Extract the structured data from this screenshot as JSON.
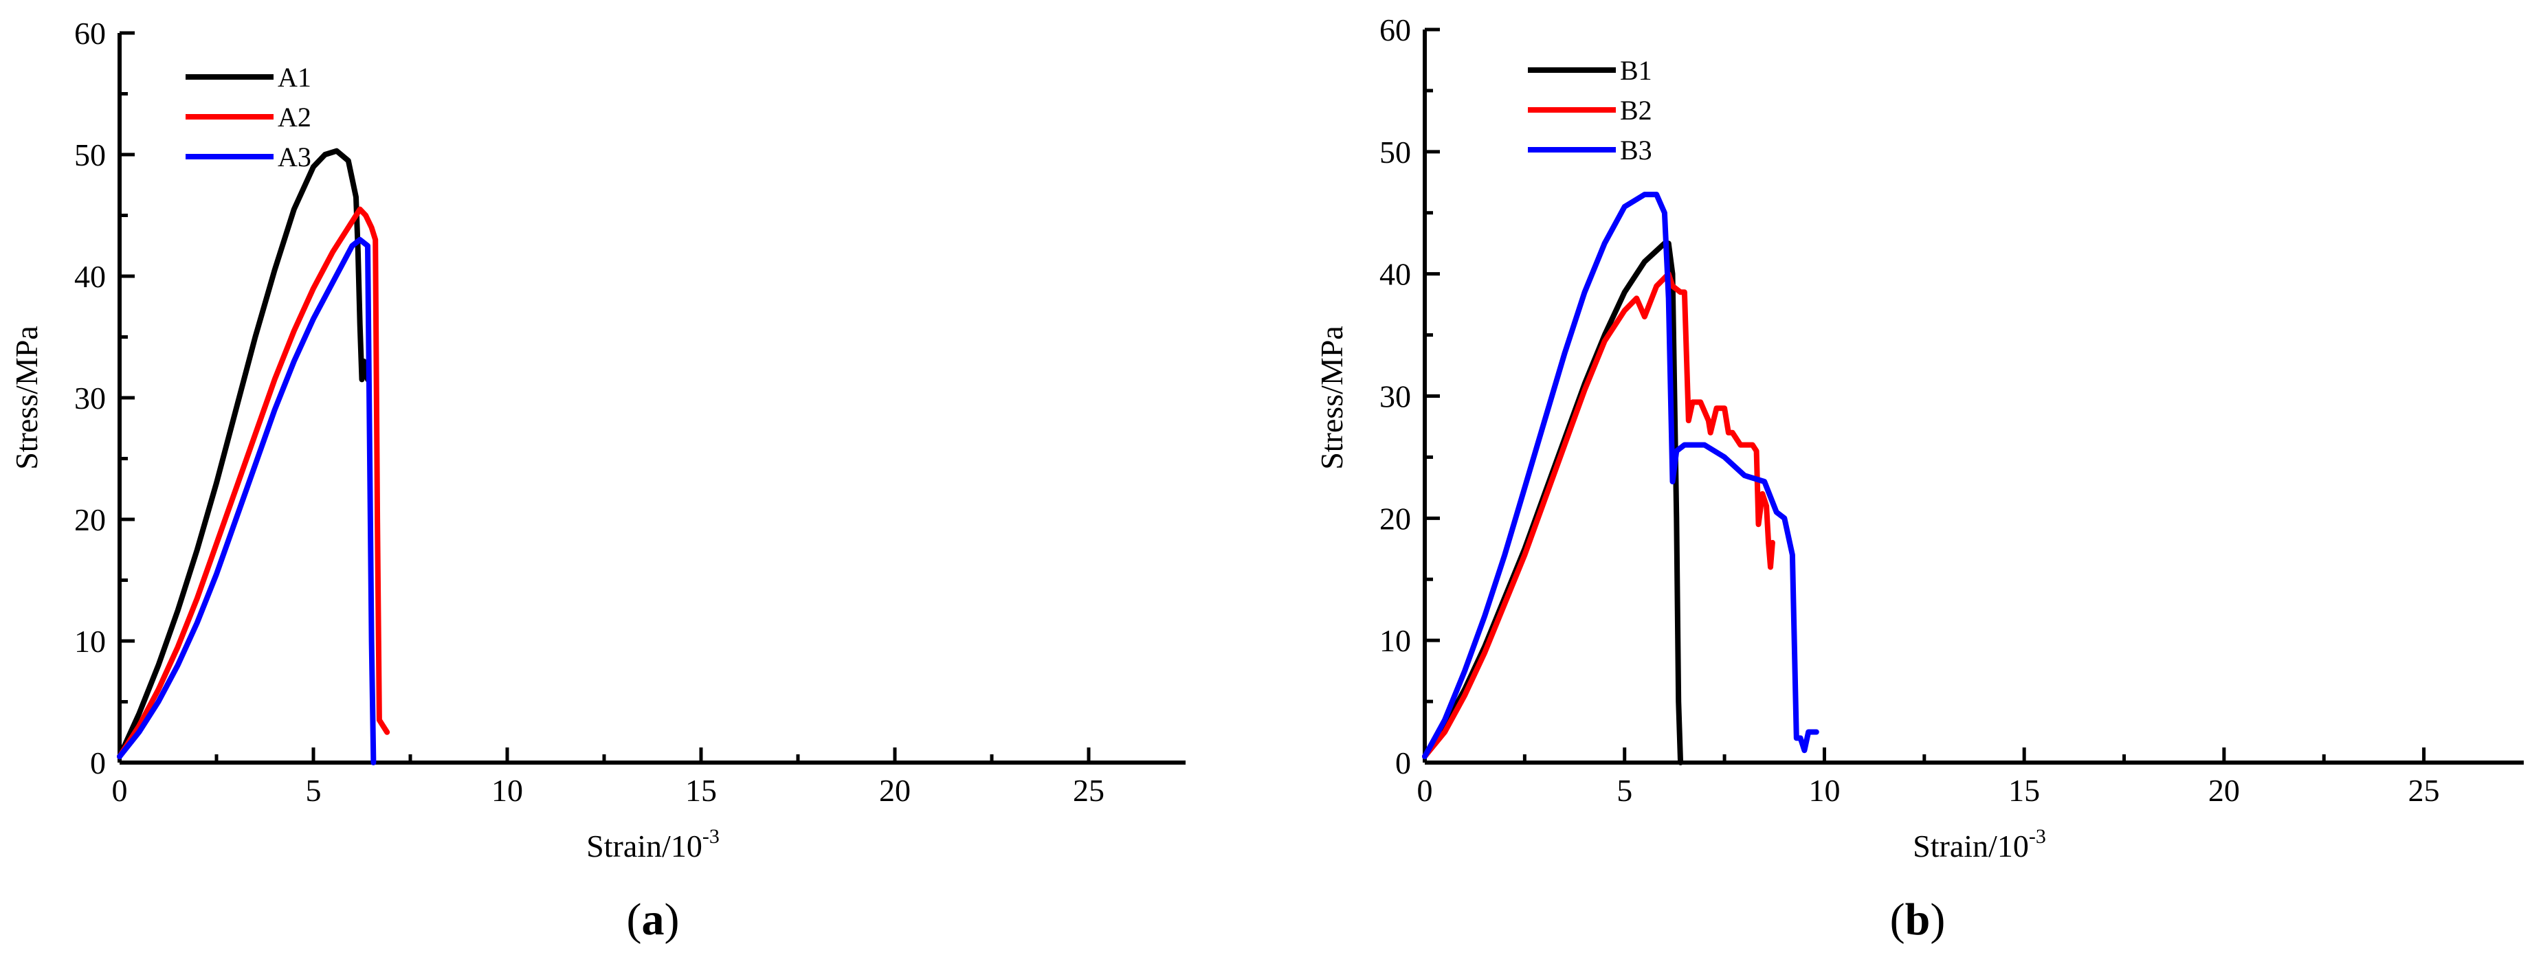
{
  "chart_data": [
    {
      "panel_label": "a",
      "type": "line",
      "xlabel": "Strain/10",
      "xlabel_exponent": "-3",
      "ylabel": "Stress/MPa",
      "xlim": [
        0,
        27.5
      ],
      "ylim": [
        0,
        60
      ],
      "xticks": [
        0,
        5,
        10,
        15,
        20,
        25
      ],
      "yticks": [
        0,
        10,
        20,
        30,
        40,
        50,
        60
      ],
      "legend_position": "top-left",
      "series": [
        {
          "name": "A1",
          "color": "#000000",
          "x": [
            0,
            0.5,
            1,
            1.5,
            2,
            2.5,
            3,
            3.5,
            4,
            4.5,
            5,
            5.3,
            5.6,
            5.9,
            6.1,
            6.15,
            6.2,
            6.25,
            6.3,
            6.35,
            6.4
          ],
          "y": [
            0.5,
            4,
            8,
            12.5,
            17.5,
            23,
            29,
            35,
            40.5,
            45.5,
            49,
            50,
            50.3,
            49.5,
            46.5,
            42,
            36,
            31.5,
            33,
            32,
            31.5
          ]
        },
        {
          "name": "A2",
          "color": "#ff0000",
          "x": [
            0,
            0.5,
            1,
            1.5,
            2,
            2.5,
            3,
            3.5,
            4,
            4.5,
            5,
            5.5,
            6,
            6.2,
            6.35,
            6.5,
            6.6,
            6.65,
            6.7,
            6.8,
            6.9
          ],
          "y": [
            0.5,
            3,
            6,
            9.5,
            13.5,
            18,
            22.5,
            27,
            31.5,
            35.5,
            39,
            42,
            44.5,
            45.5,
            45,
            44,
            43,
            20,
            3.5,
            3,
            2.5
          ]
        },
        {
          "name": "A3",
          "color": "#0000ff",
          "x": [
            0,
            0.5,
            1,
            1.5,
            2,
            2.5,
            3,
            3.5,
            4,
            4.5,
            5,
            5.5,
            6,
            6.2,
            6.4,
            6.5,
            6.55
          ],
          "y": [
            0.5,
            2.5,
            5,
            8,
            11.5,
            15.5,
            20,
            24.5,
            29,
            33,
            36.5,
            39.5,
            42.5,
            43,
            42.5,
            10,
            0
          ]
        }
      ]
    },
    {
      "panel_label": "b",
      "type": "line",
      "xlabel": "Strain/10",
      "xlabel_exponent": "-3",
      "ylabel": "Stress/MPa",
      "xlim": [
        0,
        27.5
      ],
      "ylim": [
        0,
        60
      ],
      "xticks": [
        0,
        5,
        10,
        15,
        20,
        25
      ],
      "yticks": [
        0,
        10,
        20,
        30,
        40,
        50,
        60
      ],
      "legend_position": "top-left",
      "series": [
        {
          "name": "B1",
          "color": "#000000",
          "x": [
            0,
            0.5,
            1,
            1.5,
            2,
            2.5,
            3,
            3.5,
            4,
            4.5,
            5,
            5.5,
            6,
            6.1,
            6.2,
            6.3,
            6.35,
            6.4
          ],
          "y": [
            0.5,
            3,
            6,
            9.5,
            13.5,
            17.5,
            22,
            26.5,
            31,
            35,
            38.5,
            41,
            42.5,
            42.5,
            40,
            20,
            5,
            0
          ]
        },
        {
          "name": "B2",
          "color": "#ff0000",
          "x": [
            0,
            0.5,
            1,
            1.5,
            2,
            2.5,
            3,
            3.5,
            4,
            4.5,
            5,
            5.3,
            5.5,
            5.8,
            6.1,
            6.2,
            6.4,
            6.5,
            6.6,
            6.7,
            6.9,
            7.1,
            7.15,
            7.3,
            7.5,
            7.6,
            7.7,
            7.9,
            8.0,
            8.2,
            8.3,
            8.35,
            8.45,
            8.55,
            8.6,
            8.65,
            8.7
          ],
          "y": [
            0.5,
            2.5,
            5.5,
            9,
            13,
            17,
            21.5,
            26,
            30.5,
            34.5,
            37,
            38,
            36.5,
            39,
            40,
            39,
            38.5,
            38.5,
            28,
            29.5,
            29.5,
            28,
            27,
            29,
            29,
            27,
            27,
            26,
            26,
            26,
            25.5,
            19.5,
            22,
            21,
            18,
            16,
            18
          ]
        },
        {
          "name": "B3",
          "color": "#0000ff",
          "x": [
            0,
            0.5,
            1,
            1.5,
            2,
            2.5,
            3,
            3.5,
            4,
            4.5,
            5,
            5.5,
            5.8,
            6.0,
            6.1,
            6.2,
            6.3,
            6.5,
            7.0,
            7.5,
            8.0,
            8.5,
            8.8,
            9.0,
            9.2,
            9.3,
            9.4,
            9.5,
            9.6,
            9.8
          ],
          "y": [
            0.5,
            3.5,
            7.5,
            12,
            17,
            22.5,
            28,
            33.5,
            38.5,
            42.5,
            45.5,
            46.5,
            46.5,
            45,
            38,
            23,
            25.5,
            26,
            26,
            25,
            23.5,
            23,
            20.5,
            20,
            17,
            2,
            2,
            1,
            2.5,
            2.5
          ]
        }
      ]
    }
  ]
}
